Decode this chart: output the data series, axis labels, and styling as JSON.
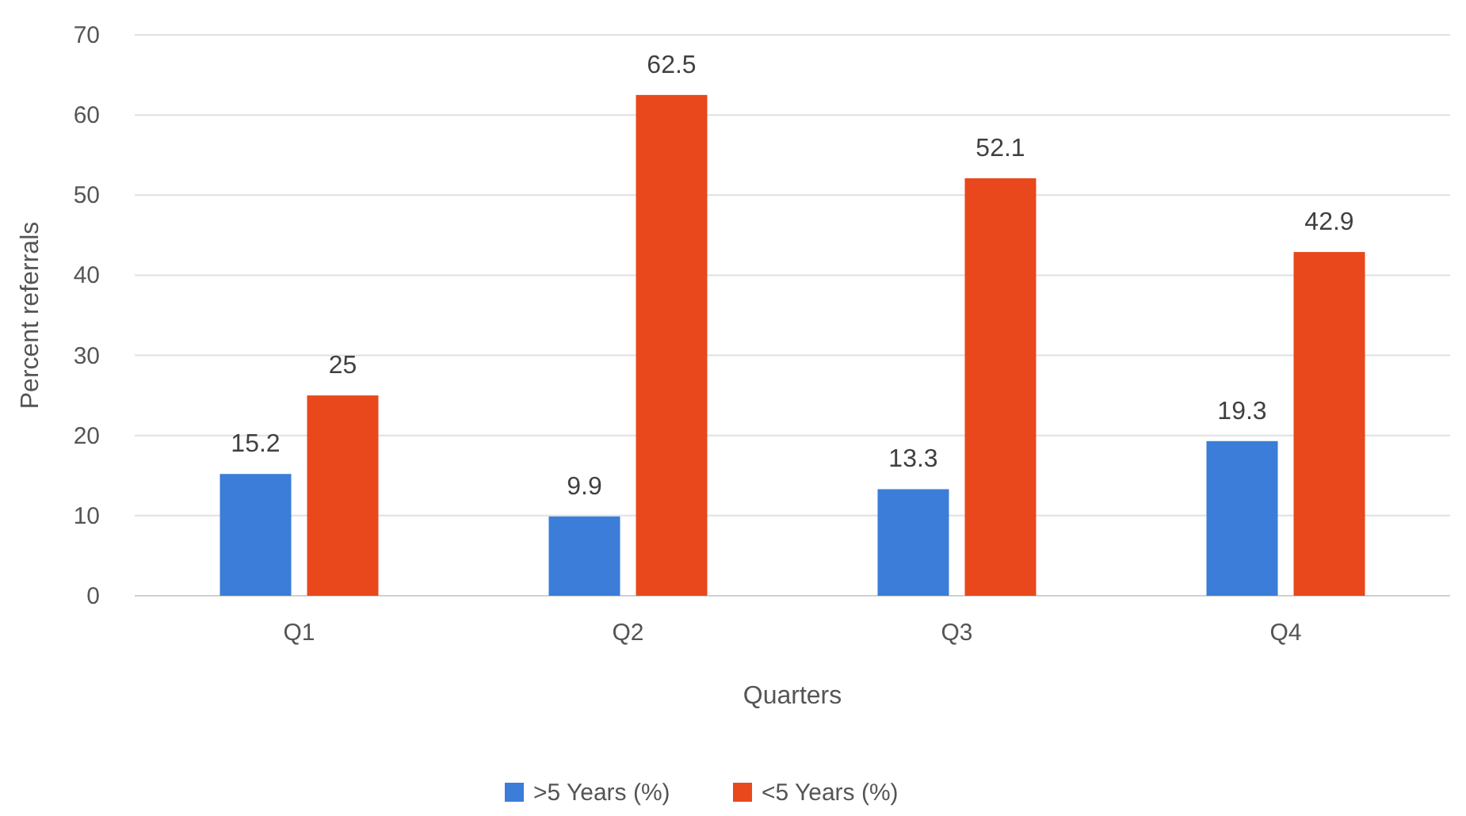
{
  "chart_data": {
    "type": "bar",
    "xlabel": "Quarters",
    "ylabel": "Percent referrals",
    "categories": [
      "Q1",
      "Q2",
      "Q3",
      "Q4"
    ],
    "series": [
      {
        "name": ">5 Years (%)",
        "color": "#3b7dd8",
        "values": [
          15.2,
          9.9,
          13.3,
          19.3
        ]
      },
      {
        "name": "<5 Years (%)",
        "color": "#e8481c",
        "values": [
          25,
          62.5,
          52.1,
          42.9
        ]
      }
    ],
    "ylim": [
      0,
      70
    ],
    "yticks": [
      0,
      10,
      20,
      30,
      40,
      50,
      60,
      70
    ],
    "grid": "y",
    "legend": "bottom",
    "data_labels": true
  }
}
